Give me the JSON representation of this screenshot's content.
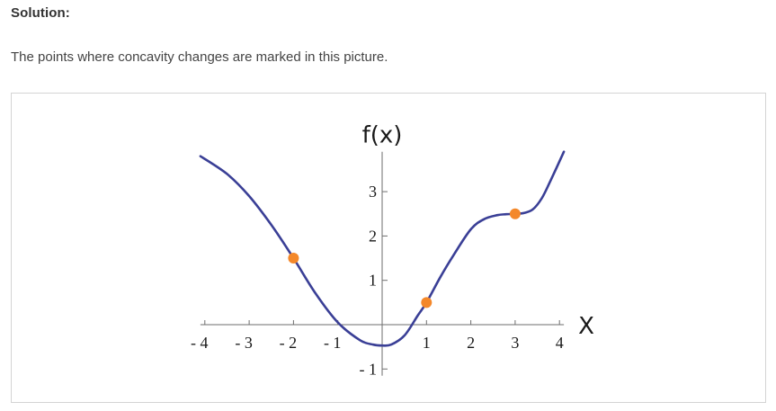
{
  "solution": {
    "heading": "Solution:",
    "text": "The points where concavity changes are marked in this picture."
  },
  "chart_data": {
    "type": "line",
    "xlabel": "X",
    "ylabel": "f(x)",
    "xlim": [
      -4.1,
      4.1
    ],
    "ylim": [
      -1.15,
      3.9
    ],
    "x_ticks": [
      -4,
      -3,
      -2,
      -1,
      1,
      2,
      3,
      4
    ],
    "x_tick_labels": [
      "- 4",
      "- 3",
      "- 2",
      "- 1",
      "1",
      "2",
      "3",
      "4"
    ],
    "y_ticks": [
      -1,
      1,
      2,
      3
    ],
    "y_tick_labels": [
      "- 1",
      "1",
      "2",
      "3"
    ],
    "grid": false,
    "series": [
      {
        "color": "#3a3f96",
        "x": [
          -4.1,
          -3.5,
          -3.0,
          -2.5,
          -2.0,
          -1.5,
          -1.0,
          -0.5,
          -0.2,
          0.0,
          0.2,
          0.5,
          0.8,
          1.0,
          1.3,
          1.6,
          2.0,
          2.3,
          2.6,
          2.8,
          3.0,
          3.2,
          3.4,
          3.6,
          3.8,
          4.1
        ],
        "y": [
          3.8,
          3.4,
          2.9,
          2.25,
          1.5,
          0.7,
          0.05,
          -0.35,
          -0.45,
          -0.47,
          -0.45,
          -0.25,
          0.2,
          0.5,
          1.05,
          1.55,
          2.15,
          2.38,
          2.47,
          2.49,
          2.5,
          2.52,
          2.6,
          2.85,
          3.25,
          3.9
        ]
      }
    ],
    "marked_points": {
      "color": "#f4882a",
      "x": [
        -2,
        1,
        3
      ],
      "y": [
        1.5,
        0.5,
        2.5
      ]
    }
  }
}
